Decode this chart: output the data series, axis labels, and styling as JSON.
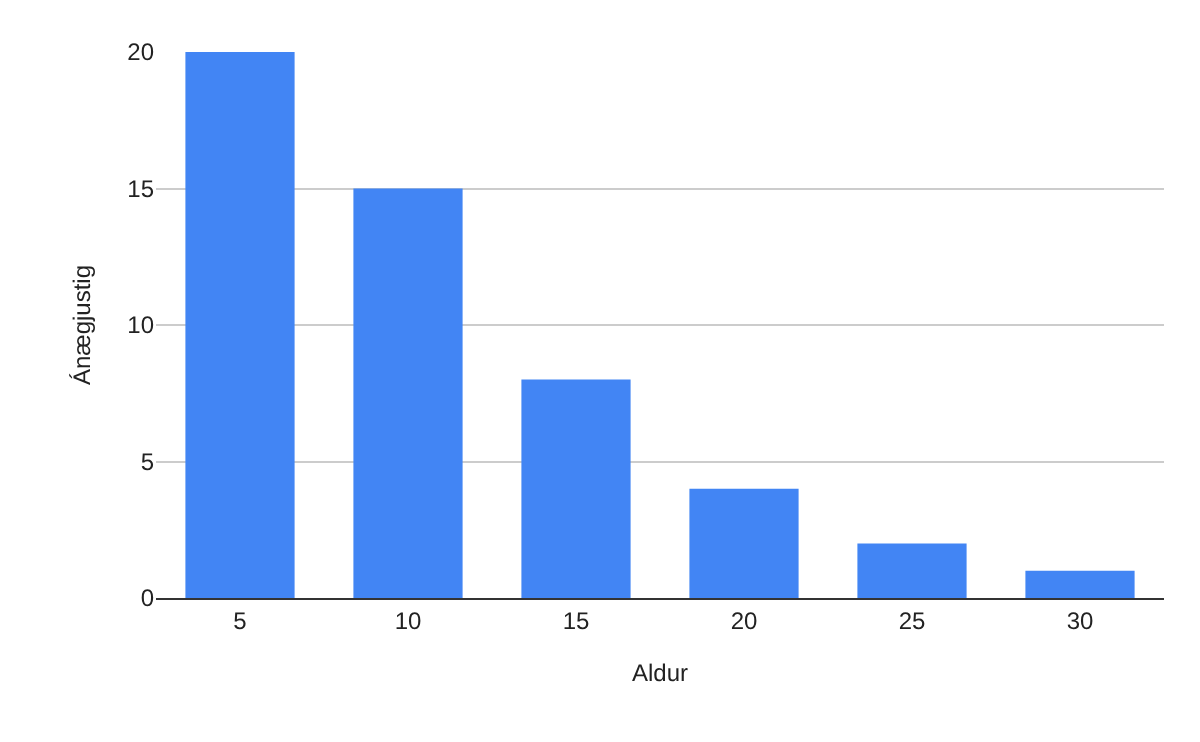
{
  "chart_data": {
    "type": "bar",
    "xlabel": "Aldur",
    "ylabel": "Ánægjustig",
    "categories": [
      "5",
      "10",
      "15",
      "20",
      "25",
      "30"
    ],
    "values": [
      20,
      15,
      8,
      4,
      2,
      1
    ],
    "color": "#4285f4",
    "ylim": [
      0,
      20
    ],
    "yticks": [
      0,
      5,
      10,
      15,
      20
    ],
    "grid": "y"
  }
}
